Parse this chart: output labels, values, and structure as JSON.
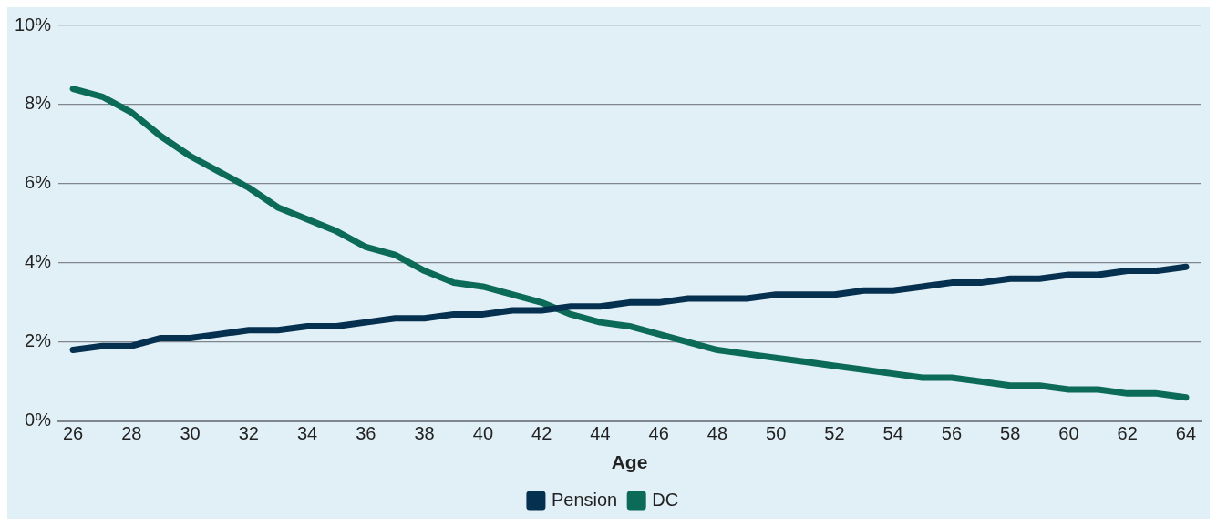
{
  "chart_data": {
    "type": "line",
    "xlabel": "Age",
    "x": [
      26,
      27,
      28,
      29,
      30,
      31,
      32,
      33,
      34,
      35,
      36,
      37,
      38,
      39,
      40,
      41,
      42,
      43,
      44,
      45,
      46,
      47,
      48,
      49,
      50,
      51,
      52,
      53,
      54,
      55,
      56,
      57,
      58,
      59,
      60,
      61,
      62,
      63,
      64
    ],
    "xlim": [
      25.5,
      64.5
    ],
    "xticks": [
      26,
      28,
      30,
      32,
      34,
      36,
      38,
      40,
      42,
      44,
      46,
      48,
      50,
      52,
      54,
      56,
      58,
      60,
      62,
      64
    ],
    "ylim": [
      0,
      10
    ],
    "yticks": [
      {
        "value": 0,
        "label": "0%"
      },
      {
        "value": 2,
        "label": "2%"
      },
      {
        "value": 4,
        "label": "4%"
      },
      {
        "value": 6,
        "label": "6%"
      },
      {
        "value": 8,
        "label": "8%"
      },
      {
        "value": 10,
        "label": "10%"
      }
    ],
    "series": [
      {
        "name": "Pension",
        "color": "#06304f",
        "values": [
          1.8,
          1.9,
          1.9,
          2.1,
          2.1,
          2.2,
          2.3,
          2.3,
          2.4,
          2.4,
          2.5,
          2.6,
          2.6,
          2.7,
          2.7,
          2.8,
          2.8,
          2.9,
          2.9,
          3.0,
          3.0,
          3.1,
          3.1,
          3.1,
          3.2,
          3.2,
          3.2,
          3.3,
          3.3,
          3.4,
          3.5,
          3.5,
          3.6,
          3.6,
          3.7,
          3.7,
          3.8,
          3.8,
          3.9
        ]
      },
      {
        "name": "DC",
        "color": "#0c6b58",
        "values": [
          8.4,
          8.2,
          7.8,
          7.2,
          6.7,
          6.3,
          5.9,
          5.4,
          5.1,
          4.8,
          4.4,
          4.2,
          3.8,
          3.5,
          3.4,
          3.2,
          3.0,
          2.7,
          2.5,
          2.4,
          2.2,
          2.0,
          1.8,
          1.7,
          1.6,
          1.5,
          1.4,
          1.3,
          1.2,
          1.1,
          1.1,
          1.0,
          0.9,
          0.9,
          0.8,
          0.8,
          0.7,
          0.7,
          0.6
        ]
      }
    ],
    "grid": "y",
    "legend": "bottom",
    "marker": "none",
    "line_style": "solid"
  }
}
